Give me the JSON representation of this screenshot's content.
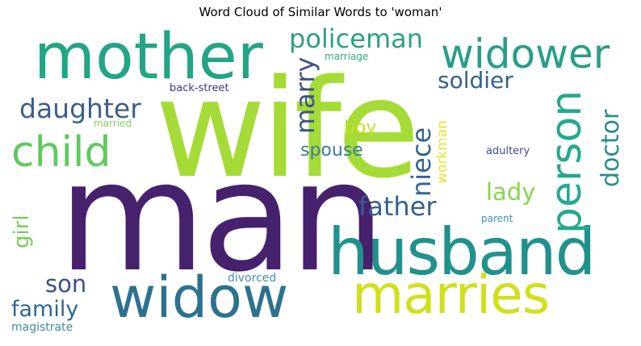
{
  "title": "Word Cloud of Similar Words to 'woman'",
  "words": {
    "wife": {
      "text": "wife",
      "color": "#a5db36"
    },
    "man": {
      "text": "man",
      "color": "#46216d"
    },
    "husband": {
      "text": "husband",
      "color": "#21918c"
    },
    "mother": {
      "text": "mother",
      "color": "#21a585"
    },
    "widow": {
      "text": "widow",
      "color": "#2c728e"
    },
    "marries": {
      "text": "marries",
      "color": "#d0e11c"
    },
    "widower": {
      "text": "widower",
      "color": "#2a9d8a"
    },
    "child": {
      "text": "child",
      "color": "#60c95f"
    },
    "person": {
      "text": "person",
      "color": "#24a98d"
    },
    "policeman": {
      "text": "policeman",
      "color": "#2d9f88"
    },
    "daughter": {
      "text": "daughter",
      "color": "#3d5f8a"
    },
    "soldier": {
      "text": "soldier",
      "color": "#35608d"
    },
    "marry": {
      "text": "marry",
      "color": "#3b5288"
    },
    "niece": {
      "text": "niece",
      "color": "#33638d"
    },
    "doctor": {
      "text": "doctor",
      "color": "#2a8c8b"
    },
    "father": {
      "text": "father",
      "color": "#37608c"
    },
    "lady": {
      "text": "lady",
      "color": "#86d549"
    },
    "spouse": {
      "text": "spouse",
      "color": "#3a7c9c"
    },
    "boy": {
      "text": "boy",
      "color": "#c8df26"
    },
    "workman": {
      "text": "workman",
      "color": "#e6e52a"
    },
    "girl": {
      "text": "girl",
      "color": "#72cf56"
    },
    "son": {
      "text": "son",
      "color": "#3c4f8a"
    },
    "family": {
      "text": "family",
      "color": "#31678e"
    },
    "magistrate": {
      "text": "magistrate",
      "color": "#3b8e9a"
    },
    "divorced": {
      "text": "divorced",
      "color": "#4a8fb0"
    },
    "married": {
      "text": "married",
      "color": "#84cf5a"
    },
    "back-street": {
      "text": "back-street",
      "color": "#46337e"
    },
    "marriage": {
      "text": "marriage",
      "color": "#3aa782"
    },
    "adultery": {
      "text": "adultery",
      "color": "#3c4a8b"
    },
    "parent": {
      "text": "parent",
      "color": "#3d8fa5"
    }
  }
}
